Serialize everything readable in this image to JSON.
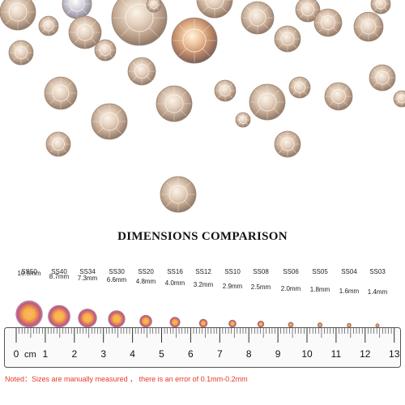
{
  "title": "DIMENSIONS COMPARISON",
  "stone_color": "#d9c3ae",
  "ab_colors": [
    "#f2a13a",
    "#c0508e",
    "#f5e3d0"
  ],
  "sizes": [
    {
      "code": "SS50",
      "mm": "10.5mm",
      "value": 10.5
    },
    {
      "code": "SS40",
      "mm": "8.7mm",
      "value": 8.7
    },
    {
      "code": "SS34",
      "mm": "7.3mm",
      "value": 7.3
    },
    {
      "code": "SS30",
      "mm": "6.6mm",
      "value": 6.6
    },
    {
      "code": "SS20",
      "mm": "4.8mm",
      "value": 4.8
    },
    {
      "code": "SS16",
      "mm": "4.0mm",
      "value": 4.0
    },
    {
      "code": "SS12",
      "mm": "3.2mm",
      "value": 3.2
    },
    {
      "code": "SS10",
      "mm": "2.9mm",
      "value": 2.9
    },
    {
      "code": "SS08",
      "mm": "2.5mm",
      "value": 2.5
    },
    {
      "code": "SS06",
      "mm": "2.0mm",
      "value": 2.0
    },
    {
      "code": "SS05",
      "mm": "1.8mm",
      "value": 1.8
    },
    {
      "code": "SS04",
      "mm": "1.6mm",
      "value": 1.6
    },
    {
      "code": "SS03",
      "mm": "1.4mm",
      "value": 1.4
    }
  ],
  "ruler": {
    "unit": "cm",
    "numbers": [
      "0",
      "1",
      "2",
      "3",
      "4",
      "5",
      "6",
      "7",
      "8",
      "9",
      "10",
      "11",
      "12",
      "13"
    ]
  },
  "note": "Noted：Sizes are manually measured ， there is an error of 0.1mm-0.2mm"
}
